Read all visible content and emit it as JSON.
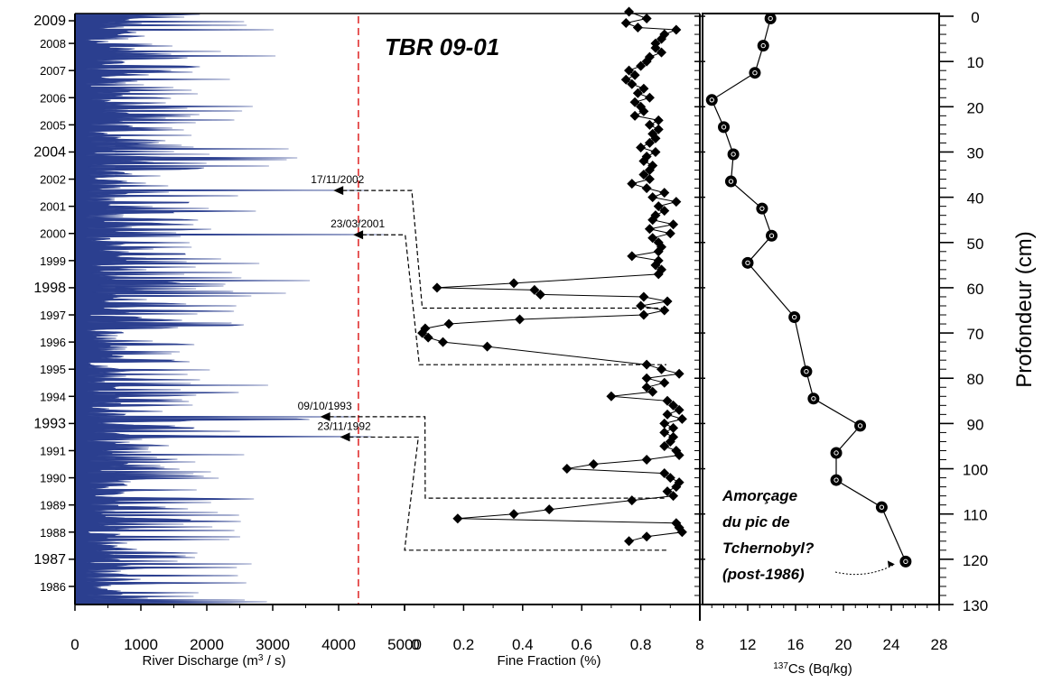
{
  "chart_data": [
    {
      "type": "area",
      "name": "discharge-panel",
      "title": "TBR 09-01",
      "xlabel_main": "River Discharge (m",
      "xlabel_sup": "3",
      "xlabel_end": " / s)",
      "xlim": [
        0,
        5000
      ],
      "xticks": [
        "0",
        "1000",
        "2000",
        "3000",
        "4000",
        "5000"
      ],
      "fill_color": "#2b3f8f",
      "threshold": {
        "x": 4300,
        "color": "#e03030",
        "style": "dashed"
      },
      "year_labels": [
        {
          "label": "2009",
          "y": 1,
          "big": true
        },
        {
          "label": "2008",
          "y": 6
        },
        {
          "label": "2007",
          "y": 12
        },
        {
          "label": "2006",
          "y": 18
        },
        {
          "label": "2005",
          "y": 24
        },
        {
          "label": "2004",
          "y": 30,
          "big": true
        },
        {
          "label": "2002",
          "y": 36
        },
        {
          "label": "2001",
          "y": 42
        },
        {
          "label": "2000",
          "y": 48
        },
        {
          "label": "1999",
          "y": 54
        },
        {
          "label": "1998",
          "y": 60,
          "big": true
        },
        {
          "label": "1997",
          "y": 66
        },
        {
          "label": "1996",
          "y": 72
        },
        {
          "label": "1995",
          "y": 78
        },
        {
          "label": "1994",
          "y": 84
        },
        {
          "label": "1993",
          "y": 90,
          "big": true
        },
        {
          "label": "1991",
          "y": 96
        },
        {
          "label": "1990",
          "y": 102
        },
        {
          "label": "1989",
          "y": 108
        },
        {
          "label": "1988",
          "y": 114
        },
        {
          "label": "1987",
          "y": 120,
          "big": true
        },
        {
          "label": "1986",
          "y": 126
        }
      ],
      "flood_events": [
        {
          "date": "17/11/2002",
          "y": 38.5,
          "discharge": 4400,
          "target_depth": 64.5,
          "elbow_x": 5000,
          "elbow2_x": 0.06
        },
        {
          "date": "23/03/2001",
          "y": 48.3,
          "discharge": 4700,
          "target_depth": 77.0,
          "elbow_x": 4900,
          "elbow2_x": 0.05
        },
        {
          "date": "09/10/1993",
          "y": 88.5,
          "discharge": 4200,
          "target_depth": 106.5,
          "elbow_x": 5200,
          "elbow2_x": 0.07
        },
        {
          "date": "23/11/1992",
          "y": 93.0,
          "discharge": 4500,
          "target_depth": 118.0,
          "elbow_x": 5100,
          "elbow2_x": 0.0
        }
      ]
    },
    {
      "type": "line",
      "name": "fine-fraction-panel",
      "xlabel": "Fine Fraction (%)",
      "xlim": [
        0,
        1.0
      ],
      "xticks": [
        "0",
        "0.2",
        "0.4",
        "0.6",
        "0.8"
      ],
      "points": [
        [
          0.76,
          -1
        ],
        [
          0.82,
          0.5
        ],
        [
          0.75,
          1.5
        ],
        [
          0.79,
          2.5
        ],
        [
          0.92,
          3
        ],
        [
          0.88,
          4
        ],
        [
          0.87,
          5
        ],
        [
          0.85,
          6
        ],
        [
          0.85,
          7
        ],
        [
          0.87,
          8
        ],
        [
          0.83,
          9
        ],
        [
          0.82,
          10
        ],
        [
          0.8,
          11
        ],
        [
          0.76,
          12
        ],
        [
          0.78,
          13
        ],
        [
          0.75,
          14
        ],
        [
          0.77,
          15
        ],
        [
          0.81,
          16
        ],
        [
          0.79,
          17
        ],
        [
          0.83,
          18
        ],
        [
          0.78,
          19
        ],
        [
          0.8,
          20
        ],
        [
          0.81,
          21
        ],
        [
          0.78,
          22
        ],
        [
          0.86,
          23
        ],
        [
          0.83,
          24
        ],
        [
          0.86,
          25
        ],
        [
          0.84,
          26
        ],
        [
          0.85,
          27
        ],
        [
          0.83,
          28
        ],
        [
          0.8,
          29
        ],
        [
          0.85,
          30
        ],
        [
          0.82,
          31
        ],
        [
          0.81,
          32
        ],
        [
          0.84,
          33
        ],
        [
          0.83,
          34
        ],
        [
          0.81,
          35
        ],
        [
          0.83,
          36
        ],
        [
          0.77,
          37
        ],
        [
          0.82,
          38
        ],
        [
          0.88,
          39
        ],
        [
          0.84,
          40
        ],
        [
          0.92,
          41
        ],
        [
          0.86,
          42
        ],
        [
          0.88,
          43
        ],
        [
          0.85,
          44
        ],
        [
          0.84,
          45
        ],
        [
          0.91,
          46
        ],
        [
          0.83,
          47
        ],
        [
          0.9,
          48
        ],
        [
          0.84,
          49
        ],
        [
          0.86,
          50
        ],
        [
          0.87,
          51
        ],
        [
          0.86,
          52
        ],
        [
          0.77,
          53
        ],
        [
          0.86,
          54
        ],
        [
          0.85,
          55
        ],
        [
          0.87,
          56
        ],
        [
          0.86,
          57
        ],
        [
          0.37,
          59
        ],
        [
          0.11,
          60
        ],
        [
          0.44,
          60.5
        ],
        [
          0.46,
          61.5
        ],
        [
          0.81,
          62
        ],
        [
          0.89,
          63
        ],
        [
          0.8,
          64
        ],
        [
          0.88,
          65
        ],
        [
          0.81,
          66
        ],
        [
          0.39,
          67
        ],
        [
          0.15,
          68
        ],
        [
          0.07,
          69
        ],
        [
          0.06,
          70
        ],
        [
          0.08,
          71
        ],
        [
          0.13,
          72
        ],
        [
          0.28,
          73
        ],
        [
          0.82,
          77
        ],
        [
          0.87,
          78
        ],
        [
          0.93,
          79
        ],
        [
          0.82,
          80
        ],
        [
          0.88,
          81
        ],
        [
          0.82,
          82
        ],
        [
          0.84,
          83
        ],
        [
          0.7,
          84
        ],
        [
          0.89,
          85
        ],
        [
          0.91,
          86
        ],
        [
          0.93,
          87
        ],
        [
          0.89,
          88
        ],
        [
          0.94,
          89
        ],
        [
          0.88,
          90
        ],
        [
          0.91,
          91
        ],
        [
          0.88,
          92
        ],
        [
          0.91,
          93
        ],
        [
          0.9,
          94
        ],
        [
          0.88,
          95
        ],
        [
          0.92,
          96
        ],
        [
          0.93,
          97
        ],
        [
          0.82,
          98
        ],
        [
          0.64,
          99
        ],
        [
          0.55,
          100
        ],
        [
          0.88,
          101
        ],
        [
          0.9,
          102
        ],
        [
          0.93,
          103
        ],
        [
          0.92,
          104
        ],
        [
          0.89,
          105
        ],
        [
          0.91,
          106
        ],
        [
          0.77,
          107
        ],
        [
          0.49,
          109
        ],
        [
          0.37,
          110
        ],
        [
          0.18,
          111
        ],
        [
          0.92,
          112
        ],
        [
          0.93,
          113
        ],
        [
          0.94,
          114
        ],
        [
          0.82,
          115
        ],
        [
          0.76,
          116
        ]
      ]
    },
    {
      "type": "line",
      "name": "cesium-panel",
      "xlabel_sup": "137",
      "xlabel": "Cs (Bq/kg)",
      "xlim": [
        8,
        28
      ],
      "xticks": [
        "8",
        "12",
        "16",
        "20",
        "24",
        "28"
      ],
      "ylabel": "Profondeur (cm)",
      "ylim": [
        0,
        130
      ],
      "yticks": [
        "0",
        "10",
        "20",
        "30",
        "40",
        "50",
        "60",
        "70",
        "80",
        "90",
        "100",
        "110",
        "120",
        "130"
      ],
      "points": [
        [
          13.9,
          0.5
        ],
        [
          13.3,
          6.5
        ],
        [
          12.6,
          12.5
        ],
        [
          9.0,
          18.5
        ],
        [
          10.0,
          24.5
        ],
        [
          10.8,
          30.5
        ],
        [
          10.6,
          36.5
        ],
        [
          13.2,
          42.5
        ],
        [
          14.0,
          48.5
        ],
        [
          12.0,
          54.5
        ],
        [
          15.9,
          66.5
        ],
        [
          16.9,
          78.5
        ],
        [
          17.5,
          84.5
        ],
        [
          21.4,
          90.5
        ],
        [
          19.4,
          96.5
        ],
        [
          19.4,
          102.5
        ],
        [
          23.2,
          108.5
        ],
        [
          25.2,
          120.5
        ]
      ],
      "annotation_lines": [
        "Amorçage",
        "du pic de",
        "Tchernobyl?",
        "(post-1986)"
      ]
    }
  ]
}
